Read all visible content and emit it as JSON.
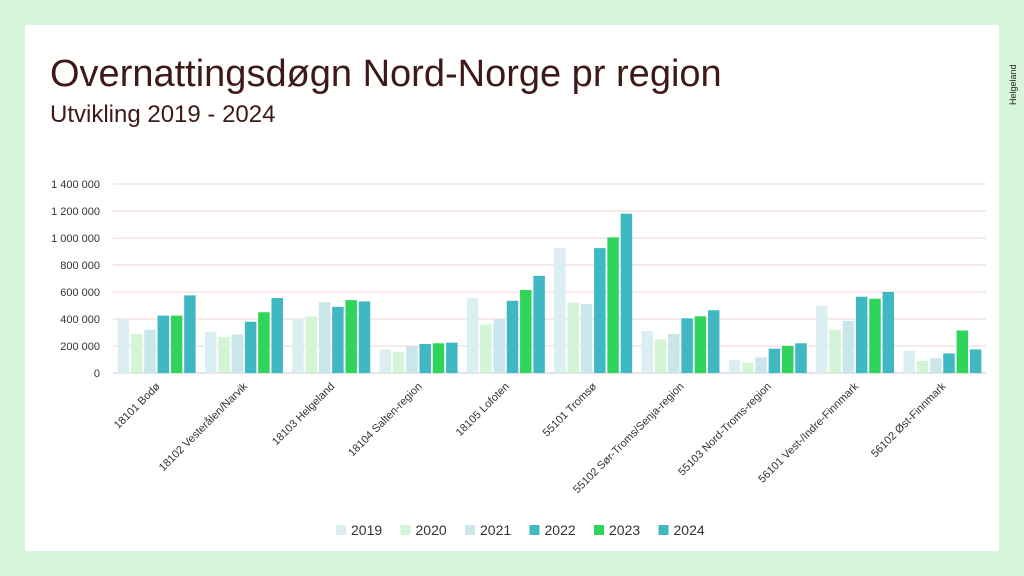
{
  "slide": {
    "title": "Overnattingsdøgn Nord-Norge pr region",
    "subtitle": "Utvikling 2019 - 2024",
    "logo_text": "Helgeland",
    "logo_icon": "heart-logo-icon"
  },
  "chart_data": {
    "type": "bar",
    "categories": [
      "18101 Bodø",
      "18102 Vesterålen/Narvik",
      "18103 Helgeland",
      "18104 Salten-region",
      "18105 Lofoten",
      "55101 Tromsø",
      "55102 Sør-Troms/Senja-region",
      "55103 Nord-Troms-region",
      "56101 Vest-/Indre-Finnmark",
      "56102 Øst-Finnmark"
    ],
    "series": [
      {
        "name": "2019",
        "color": "#dbeef1",
        "values": [
          400000,
          305000,
          400000,
          175000,
          555000,
          925000,
          310000,
          95000,
          500000,
          165000
        ]
      },
      {
        "name": "2020",
        "color": "#d4f4d6",
        "values": [
          290000,
          265000,
          420000,
          155000,
          360000,
          520000,
          250000,
          75000,
          320000,
          90000
        ]
      },
      {
        "name": "2021",
        "color": "#c9e6ea",
        "values": [
          320000,
          285000,
          525000,
          195000,
          400000,
          510000,
          290000,
          115000,
          385000,
          110000
        ]
      },
      {
        "name": "2022",
        "color": "#3fb8c4",
        "values": [
          425000,
          380000,
          490000,
          215000,
          535000,
          925000,
          405000,
          180000,
          565000,
          145000
        ]
      },
      {
        "name": "2023",
        "color": "#2fd55a",
        "values": [
          425000,
          450000,
          540000,
          220000,
          615000,
          1005000,
          420000,
          200000,
          550000,
          315000
        ]
      },
      {
        "name": "2024",
        "color": "#3fb8c4",
        "values": [
          575000,
          555000,
          530000,
          225000,
          720000,
          1180000,
          465000,
          220000,
          600000,
          175000
        ]
      }
    ],
    "ylim": [
      0,
      1400000
    ],
    "ytick_values": [
      0,
      200000,
      400000,
      600000,
      800000,
      1000000,
      1200000,
      1400000
    ],
    "ytick_labels": [
      "0",
      "200 000",
      "400 000",
      "600 000",
      "800 000",
      "1 000 000",
      "1 200 000",
      "1 400 000"
    ],
    "grid": true,
    "legend_position": "bottom",
    "title": "",
    "xlabel": "",
    "ylabel": ""
  }
}
